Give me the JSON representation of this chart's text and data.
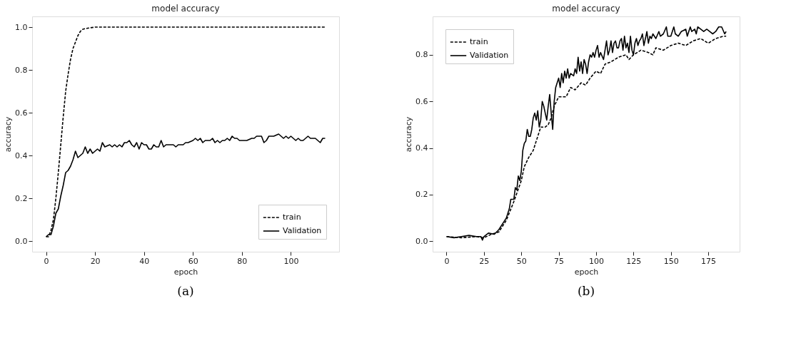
{
  "chart_data": [
    {
      "type": "line",
      "title": "model accuracy",
      "xlabel": "epoch",
      "ylabel": "accuracy",
      "annotations": [
        "(a)"
      ],
      "legend": "bottom right",
      "grid": false,
      "marker": "none",
      "xlim": [
        -5.7,
        119.7
      ],
      "ylim": [
        -0.05,
        1.05
      ],
      "xticks": [
        0,
        20,
        40,
        60,
        80,
        100
      ],
      "yticks": [
        {
          "value": 0,
          "label": "0.0"
        },
        {
          "value": 0.2,
          "label": "0.2"
        },
        {
          "value": 0.4,
          "label": "0.4"
        },
        {
          "value": 0.6,
          "label": "0.6"
        },
        {
          "value": 0.8,
          "label": "0.8"
        },
        {
          "value": 1,
          "label": "1.0"
        }
      ],
      "series": [
        {
          "name": "train",
          "color": "#000000",
          "line_style": "dashed",
          "x": [
            0,
            1,
            2,
            3,
            4,
            5,
            6,
            7,
            8,
            9,
            10,
            11,
            12,
            13,
            14,
            15,
            17,
            20,
            30,
            60,
            90,
            114
          ],
          "values": [
            0.02,
            0.02,
            0.05,
            0.1,
            0.2,
            0.32,
            0.45,
            0.58,
            0.7,
            0.78,
            0.85,
            0.9,
            0.93,
            0.96,
            0.98,
            0.99,
            0.995,
            1.0,
            1.0,
            1.0,
            1.0,
            1.0
          ]
        },
        {
          "name": "Validation",
          "color": "#000000",
          "line_style": "solid",
          "x": [
            0,
            1,
            2,
            3,
            4,
            5,
            6,
            7,
            8,
            9,
            10,
            11,
            12,
            13,
            14,
            15,
            16,
            17,
            18,
            19,
            20,
            21,
            22,
            23,
            24,
            26,
            27,
            28,
            29,
            30,
            31,
            32,
            33,
            34,
            35,
            36,
            37,
            38,
            39,
            40,
            41,
            42,
            43,
            44,
            45,
            46,
            47,
            48,
            49,
            50,
            52,
            53,
            54,
            55,
            56,
            57,
            58,
            60,
            61,
            62,
            63,
            64,
            65,
            66,
            67,
            68,
            69,
            70,
            71,
            72,
            73,
            74,
            75,
            76,
            77,
            78,
            79,
            80,
            82,
            84,
            85,
            86,
            87,
            88,
            89,
            90,
            91,
            92,
            93,
            95,
            96,
            97,
            98,
            99,
            100,
            101,
            102,
            103,
            104,
            105,
            106,
            107,
            108,
            109,
            110,
            111,
            112,
            113,
            114
          ],
          "values": [
            0.02,
            0.03,
            0.03,
            0.07,
            0.13,
            0.15,
            0.21,
            0.26,
            0.32,
            0.33,
            0.35,
            0.38,
            0.42,
            0.39,
            0.4,
            0.41,
            0.44,
            0.41,
            0.43,
            0.41,
            0.42,
            0.43,
            0.42,
            0.46,
            0.44,
            0.45,
            0.44,
            0.45,
            0.44,
            0.45,
            0.44,
            0.46,
            0.46,
            0.47,
            0.45,
            0.44,
            0.46,
            0.43,
            0.46,
            0.45,
            0.45,
            0.43,
            0.43,
            0.45,
            0.44,
            0.44,
            0.47,
            0.44,
            0.45,
            0.45,
            0.45,
            0.44,
            0.45,
            0.45,
            0.45,
            0.46,
            0.46,
            0.47,
            0.48,
            0.47,
            0.48,
            0.46,
            0.47,
            0.47,
            0.47,
            0.48,
            0.46,
            0.47,
            0.46,
            0.47,
            0.47,
            0.48,
            0.47,
            0.49,
            0.48,
            0.48,
            0.47,
            0.47,
            0.47,
            0.48,
            0.48,
            0.49,
            0.49,
            0.49,
            0.46,
            0.47,
            0.49,
            0.49,
            0.49,
            0.5,
            0.49,
            0.48,
            0.49,
            0.48,
            0.49,
            0.48,
            0.47,
            0.48,
            0.47,
            0.47,
            0.48,
            0.49,
            0.48,
            0.48,
            0.48,
            0.47,
            0.46,
            0.48,
            0.48
          ]
        }
      ]
    },
    {
      "type": "line",
      "title": "model accuracy",
      "xlabel": "epoch",
      "ylabel": "accuracy",
      "annotations": [
        "(b)"
      ],
      "legend": "top left",
      "grid": false,
      "marker": "none",
      "xlim": [
        -9.3,
        196
      ],
      "ylim": [
        -0.045,
        0.965
      ],
      "xticks": [
        0,
        25,
        50,
        75,
        100,
        125,
        150,
        175
      ],
      "yticks": [
        {
          "value": 0,
          "label": "0.0"
        },
        {
          "value": 0.2,
          "label": "0.2"
        },
        {
          "value": 0.4,
          "label": "0.4"
        },
        {
          "value": 0.6,
          "label": "0.6"
        },
        {
          "value": 0.8,
          "label": "0.8"
        }
      ],
      "series": [
        {
          "name": "train",
          "color": "#000000",
          "line_style": "dashed",
          "x": [
            0,
            10,
            20,
            25,
            30,
            35,
            40,
            45,
            50,
            52,
            55,
            58,
            60,
            63,
            66,
            68,
            70,
            72,
            75,
            78,
            80,
            83,
            86,
            90,
            93,
            96,
            100,
            103,
            106,
            110,
            115,
            120,
            122,
            125,
            130,
            135,
            138,
            140,
            145,
            150,
            155,
            160,
            165,
            170,
            175,
            180,
            185,
            187
          ],
          "values": [
            0.02,
            0.015,
            0.02,
            0.015,
            0.03,
            0.04,
            0.09,
            0.17,
            0.26,
            0.32,
            0.36,
            0.39,
            0.43,
            0.49,
            0.49,
            0.5,
            0.53,
            0.58,
            0.62,
            0.62,
            0.62,
            0.66,
            0.65,
            0.68,
            0.67,
            0.7,
            0.73,
            0.72,
            0.76,
            0.77,
            0.79,
            0.8,
            0.78,
            0.8,
            0.82,
            0.81,
            0.8,
            0.83,
            0.82,
            0.84,
            0.85,
            0.84,
            0.86,
            0.87,
            0.85,
            0.87,
            0.88,
            0.88
          ]
        },
        {
          "name": "Validation",
          "color": "#000000",
          "line_style": "solid",
          "x": [
            0,
            5,
            10,
            15,
            20,
            23,
            24,
            25,
            28,
            32,
            35,
            38,
            40,
            42,
            43,
            45,
            46,
            47,
            48,
            49,
            50,
            51,
            52,
            53,
            54,
            55,
            56,
            57,
            58,
            59,
            60,
            61,
            62,
            63,
            64,
            65,
            66,
            67,
            68,
            69,
            70,
            71,
            72,
            73,
            74,
            75,
            76,
            77,
            78,
            79,
            80,
            81,
            82,
            83,
            85,
            86,
            87,
            88,
            89,
            90,
            91,
            92,
            93,
            94,
            95,
            96,
            97,
            98,
            99,
            100,
            101,
            102,
            103,
            105,
            106,
            107,
            108,
            109,
            110,
            111,
            112,
            113,
            114,
            115,
            116,
            117,
            118,
            119,
            120,
            121,
            122,
            123,
            124,
            125,
            126,
            127,
            128,
            129,
            130,
            131,
            132,
            133,
            134,
            135,
            136,
            137,
            138,
            140,
            142,
            143,
            145,
            147,
            148,
            150,
            152,
            153,
            155,
            157,
            160,
            161,
            163,
            164,
            166,
            167,
            168,
            170,
            172,
            174,
            176,
            178,
            180,
            182,
            184,
            186,
            187
          ],
          "values": [
            0.02,
            0.015,
            0.02,
            0.025,
            0.02,
            0.02,
            0.005,
            0.02,
            0.035,
            0.03,
            0.05,
            0.08,
            0.1,
            0.14,
            0.18,
            0.18,
            0.23,
            0.22,
            0.28,
            0.26,
            0.3,
            0.39,
            0.42,
            0.43,
            0.48,
            0.45,
            0.45,
            0.48,
            0.53,
            0.55,
            0.52,
            0.56,
            0.49,
            0.52,
            0.6,
            0.58,
            0.55,
            0.52,
            0.58,
            0.63,
            0.55,
            0.48,
            0.6,
            0.66,
            0.68,
            0.7,
            0.66,
            0.72,
            0.68,
            0.73,
            0.7,
            0.74,
            0.7,
            0.72,
            0.71,
            0.74,
            0.72,
            0.79,
            0.73,
            0.77,
            0.72,
            0.78,
            0.76,
            0.72,
            0.77,
            0.8,
            0.79,
            0.81,
            0.79,
            0.82,
            0.84,
            0.79,
            0.81,
            0.78,
            0.82,
            0.86,
            0.8,
            0.82,
            0.86,
            0.81,
            0.85,
            0.86,
            0.83,
            0.83,
            0.86,
            0.87,
            0.82,
            0.88,
            0.83,
            0.85,
            0.81,
            0.88,
            0.82,
            0.8,
            0.85,
            0.87,
            0.84,
            0.86,
            0.87,
            0.89,
            0.84,
            0.87,
            0.9,
            0.85,
            0.88,
            0.87,
            0.89,
            0.87,
            0.9,
            0.88,
            0.89,
            0.92,
            0.88,
            0.88,
            0.92,
            0.89,
            0.88,
            0.9,
            0.91,
            0.88,
            0.92,
            0.9,
            0.91,
            0.89,
            0.92,
            0.91,
            0.9,
            0.91,
            0.9,
            0.89,
            0.9,
            0.92,
            0.92,
            0.89,
            0.9
          ]
        }
      ]
    }
  ]
}
